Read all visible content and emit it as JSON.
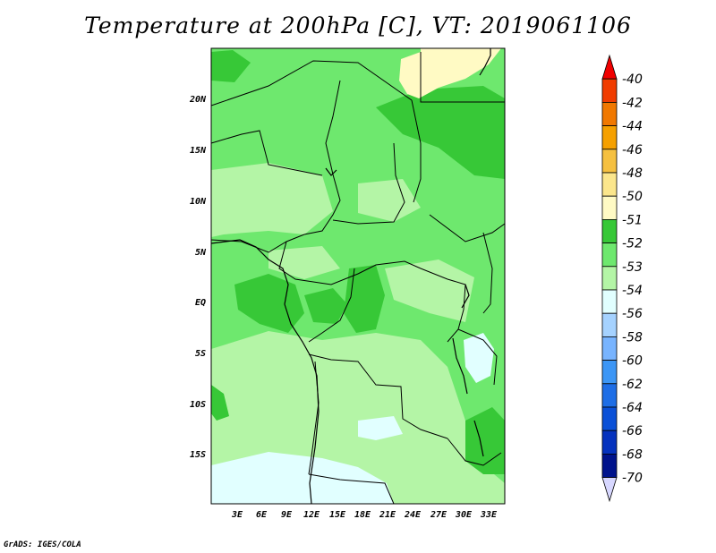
{
  "title": "Temperature at 200hPa [C], VT: 2019061106",
  "credit": "GrADS: IGES/COLA",
  "map": {
    "lon_labels": [
      "3E",
      "6E",
      "9E",
      "12E",
      "15E",
      "18E",
      "21E",
      "24E",
      "27E",
      "30E",
      "33E"
    ],
    "lat_labels": [
      "20N",
      "15N",
      "10N",
      "5N",
      "EQ",
      "5S",
      "10S",
      "15S"
    ]
  },
  "colorbar": {
    "labels": [
      "-40",
      "-42",
      "-44",
      "-46",
      "-48",
      "-50",
      "-51",
      "-52",
      "-53",
      "-54",
      "-56",
      "-58",
      "-60",
      "-62",
      "-64",
      "-66",
      "-68",
      "-70"
    ],
    "colors": [
      "#f00000",
      "#f03c00",
      "#f07800",
      "#f5a000",
      "#f5c040",
      "#fbe68c",
      "#fffac4",
      "#37c837",
      "#6ee86e",
      "#b4f5a6",
      "#e1ffff",
      "#a5d2ff",
      "#78b4ff",
      "#3c96f5",
      "#1e6ee6",
      "#0a50d7",
      "#0532be",
      "#00138c",
      "#d7d7ff"
    ]
  },
  "field_colors": {
    "c51": "#fffac4",
    "c52": "#37c837",
    "c53": "#6ee86e",
    "c54": "#b4f5a6",
    "c56": "#e1ffff"
  }
}
